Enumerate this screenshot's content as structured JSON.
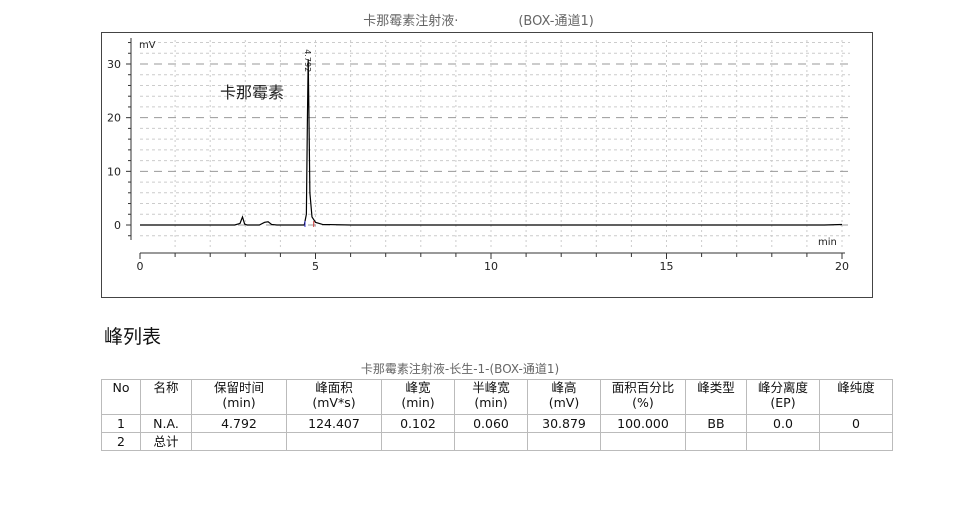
{
  "chart_data": {
    "type": "line",
    "title_left": "卡那霉素注射液·",
    "title_right": "(BOX-通道1)",
    "ylabel": "mV",
    "xlabel": "min",
    "xlim": [
      0,
      20
    ],
    "ylim": [
      -2,
      34
    ],
    "x_ticks": [
      0,
      5,
      10,
      15,
      20
    ],
    "y_ticks": [
      0,
      10,
      20,
      30
    ],
    "grid": true,
    "annotation": "卡那霉素",
    "peak_label": "4.792",
    "series": [
      {
        "color": "#000000",
        "points": [
          [
            0,
            0
          ],
          [
            2.7,
            0
          ],
          [
            2.85,
            0.3
          ],
          [
            2.92,
            1.5
          ],
          [
            2.98,
            0.2
          ],
          [
            3.05,
            0
          ],
          [
            3.4,
            0
          ],
          [
            3.55,
            0.5
          ],
          [
            3.65,
            0.6
          ],
          [
            3.75,
            0.1
          ],
          [
            3.9,
            0
          ],
          [
            4.68,
            0
          ],
          [
            4.74,
            2
          ],
          [
            4.77,
            20
          ],
          [
            4.792,
            30.879
          ],
          [
            4.81,
            22
          ],
          [
            4.84,
            6
          ],
          [
            4.9,
            1.5
          ],
          [
            5.0,
            0.5
          ],
          [
            5.2,
            0.1
          ],
          [
            6,
            0
          ],
          [
            10,
            0
          ],
          [
            15,
            0
          ],
          [
            19.5,
            0
          ],
          [
            20,
            0.1
          ]
        ]
      }
    ]
  },
  "section_title": "峰列表",
  "table": {
    "title": "卡那霉素注射液-长生-1-(BOX-通道1)",
    "headers": [
      [
        "No",
        ""
      ],
      [
        "名称",
        ""
      ],
      [
        "保留时间",
        "(min)"
      ],
      [
        "峰面积",
        "(mV*s)"
      ],
      [
        "峰宽",
        "(min)"
      ],
      [
        "半峰宽",
        "(min)"
      ],
      [
        "峰高",
        "(mV)"
      ],
      [
        "面积百分比",
        "(%)"
      ],
      [
        "峰类型",
        ""
      ],
      [
        "峰分离度",
        "(EP)"
      ],
      [
        "峰纯度",
        ""
      ]
    ],
    "rows": [
      [
        "1",
        "N.A.",
        "4.792",
        "124.407",
        "0.102",
        "0.060",
        "30.879",
        "100.000",
        "BB",
        "0.0",
        "0"
      ],
      [
        "2",
        "总计",
        "",
        "",
        "",
        "",
        "",
        "",
        "",
        "",
        ""
      ]
    ]
  }
}
